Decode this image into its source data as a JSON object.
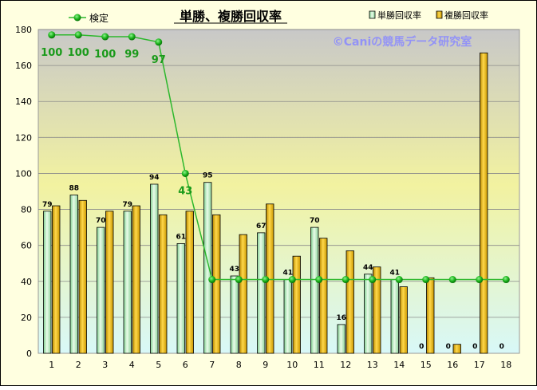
{
  "chart_data": {
    "type": "bar",
    "title": "単勝、複勝回収率",
    "watermark": "©Caniの競馬データ研究室",
    "categories": [
      "1",
      "2",
      "3",
      "4",
      "5",
      "6",
      "7",
      "8",
      "9",
      "10",
      "11",
      "12",
      "13",
      "14",
      "15",
      "16",
      "17",
      "18"
    ],
    "series": [
      {
        "name": "単勝回収率",
        "kind": "bar",
        "color": "#b8e8c0",
        "values": [
          79,
          88,
          70,
          79,
          94,
          61,
          95,
          43,
          67,
          41,
          70,
          16,
          44,
          41,
          0,
          0,
          0,
          0
        ],
        "labels": [
          "79",
          "88",
          "70",
          "79",
          "94",
          "61",
          "95",
          "43",
          "67",
          "41",
          "70",
          "16",
          "44",
          "41",
          "0",
          "0",
          "0",
          "0"
        ]
      },
      {
        "name": "複勝回収率",
        "kind": "bar",
        "color": "#e8b400",
        "values": [
          82,
          85,
          79,
          82,
          77,
          79,
          77,
          66,
          83,
          54,
          64,
          57,
          48,
          37,
          42,
          5,
          167,
          0
        ]
      },
      {
        "name": "検定",
        "kind": "line",
        "color": "#2db82d",
        "plot_values": [
          177,
          177,
          176,
          176,
          173,
          100,
          41,
          41,
          41,
          41,
          41,
          41,
          41,
          41,
          41,
          41,
          41,
          41
        ],
        "labels": [
          "100",
          "100",
          "100",
          "99",
          "97",
          "43",
          "",
          "",
          "",
          "",
          "",
          "",
          "",
          "",
          "",
          "",
          "",
          ""
        ]
      }
    ],
    "ylim": [
      0,
      180
    ],
    "yticks": [
      "0",
      "20",
      "40",
      "60",
      "80",
      "100",
      "120",
      "140",
      "160",
      "180"
    ],
    "grid": true,
    "legend": "top",
    "background_gradient": [
      "#c8c8c8",
      "#f2f2a0",
      "#d8f8f8"
    ]
  }
}
